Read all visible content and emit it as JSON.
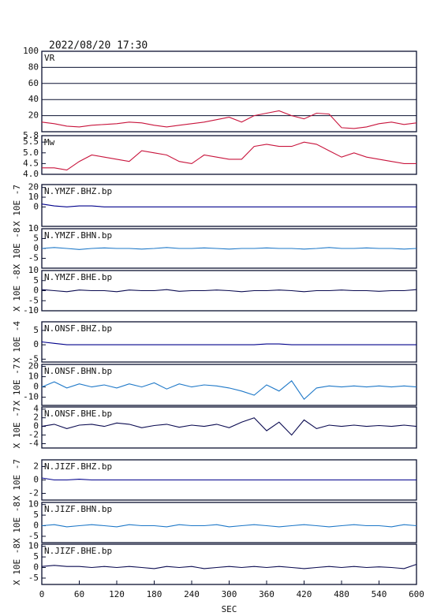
{
  "chart_data": [
    {
      "type": "line",
      "title": "2022/08/20 17:30",
      "label": "VR",
      "color": "#c8143c",
      "x": [
        0,
        20,
        40,
        60,
        80,
        100,
        120,
        140,
        160,
        180,
        200,
        220,
        240,
        260,
        280,
        300,
        320,
        340,
        360,
        380,
        400,
        420,
        440,
        460,
        480,
        500,
        520,
        540,
        560,
        580,
        600
      ],
      "values": [
        12,
        10,
        7,
        6,
        8,
        9,
        10,
        12,
        11,
        8,
        6,
        8,
        10,
        12,
        15,
        18,
        12,
        20,
        23,
        26,
        20,
        16,
        23,
        22,
        5,
        4,
        6,
        10,
        12,
        9,
        11
      ],
      "xlim": [
        0,
        600
      ],
      "ylim": [
        0,
        100
      ],
      "yticks": [
        20,
        40,
        60,
        80,
        100
      ],
      "grid": true
    },
    {
      "type": "line",
      "label": "Mw",
      "color": "#c8143c",
      "x": [
        0,
        20,
        40,
        60,
        80,
        100,
        120,
        140,
        160,
        180,
        200,
        220,
        240,
        260,
        280,
        300,
        320,
        340,
        360,
        380,
        400,
        420,
        440,
        460,
        480,
        500,
        520,
        540,
        560,
        580,
        600
      ],
      "values": [
        4.3,
        4.3,
        4.2,
        4.6,
        4.9,
        4.8,
        4.7,
        4.6,
        5.1,
        5.0,
        4.9,
        4.6,
        4.5,
        4.9,
        4.8,
        4.7,
        4.7,
        5.3,
        5.4,
        5.3,
        5.3,
        5.5,
        5.4,
        5.1,
        4.8,
        5.0,
        4.8,
        4.7,
        4.6,
        4.5,
        4.5
      ],
      "xlim": [
        0,
        600
      ],
      "ylim": [
        4.0,
        5.8
      ],
      "yticks": [
        {
          "value": 4,
          "label": "4.0"
        },
        4.5,
        {
          "value": 5,
          "label": "5.0"
        },
        5.5,
        5.8
      ],
      "grid": false
    },
    {
      "type": "line",
      "label": "N.YMZF.BHZ.bp",
      "axis_label": "X 10E -7",
      "color": "#00008b",
      "x": [
        0,
        20,
        40,
        60,
        80,
        100,
        120,
        140,
        160,
        180,
        200,
        220,
        240,
        260,
        280,
        300,
        320,
        340,
        360,
        380,
        400,
        420,
        440,
        460,
        480,
        500,
        520,
        540,
        560,
        580,
        600
      ],
      "values": [
        3,
        1,
        0,
        1,
        1,
        0,
        0,
        0,
        0,
        0,
        0,
        0,
        0,
        0,
        0,
        0,
        0,
        0,
        0,
        0,
        0,
        0,
        0,
        0,
        0,
        0,
        0,
        0,
        0,
        0,
        0
      ],
      "xlim": [
        0,
        600
      ],
      "ylim": [
        -20,
        23
      ],
      "yticks": [
        0,
        10,
        20
      ],
      "grid": false
    },
    {
      "type": "line",
      "label": "N.YMZF.BHN.bp",
      "axis_label": "X 10E -8",
      "color": "#1e78c8",
      "x": [
        0,
        20,
        40,
        60,
        80,
        100,
        120,
        140,
        160,
        180,
        200,
        220,
        240,
        260,
        280,
        300,
        320,
        340,
        360,
        380,
        400,
        420,
        440,
        460,
        480,
        500,
        520,
        540,
        560,
        580,
        600
      ],
      "values": [
        0,
        0.5,
        0,
        -0.5,
        0,
        0.3,
        0,
        0,
        -0.3,
        0,
        0.5,
        0,
        0,
        0.3,
        0,
        -0.3,
        0,
        0,
        0.3,
        0,
        0,
        -0.3,
        0,
        0.5,
        0,
        0,
        0.3,
        0,
        0,
        -0.3,
        0
      ],
      "xlim": [
        0,
        600
      ],
      "ylim": [
        -10,
        10
      ],
      "yticks": [
        -5,
        0,
        5,
        10
      ],
      "grid": false
    },
    {
      "type": "line",
      "label": "N.YMZF.BHE.bp",
      "axis_label": "X 10E -8",
      "color": "#0a0a50",
      "x": [
        0,
        20,
        40,
        60,
        80,
        100,
        120,
        140,
        160,
        180,
        200,
        220,
        240,
        260,
        280,
        300,
        320,
        340,
        360,
        380,
        400,
        420,
        440,
        460,
        480,
        500,
        520,
        540,
        560,
        580,
        600
      ],
      "values": [
        0.5,
        0,
        -0.5,
        0.3,
        0,
        0,
        -0.5,
        0.3,
        0,
        0,
        0.5,
        -0.3,
        0,
        0,
        0.3,
        0,
        -0.5,
        0,
        0,
        0.3,
        0,
        -0.5,
        0,
        0,
        0.3,
        0,
        0,
        -0.3,
        0,
        0,
        0.5
      ],
      "xlim": [
        0,
        600
      ],
      "ylim": [
        -10,
        10
      ],
      "yticks": [
        -10,
        -5,
        0,
        5,
        10
      ],
      "grid": false
    },
    {
      "type": "line",
      "label": "N.ONSF.BHZ.bp",
      "axis_label": "X 10E -4",
      "color": "#00008b",
      "x": [
        0,
        20,
        40,
        60,
        80,
        100,
        120,
        140,
        160,
        180,
        200,
        220,
        240,
        260,
        280,
        300,
        320,
        340,
        360,
        380,
        400,
        420,
        440,
        460,
        480,
        500,
        520,
        540,
        560,
        580,
        600
      ],
      "values": [
        1,
        0.5,
        0,
        0,
        0,
        0,
        0,
        0,
        0,
        0,
        0,
        0,
        0,
        0,
        0,
        0,
        0,
        0,
        0.3,
        0.3,
        0,
        0,
        0,
        0,
        0,
        0,
        0,
        0,
        0,
        0,
        0
      ],
      "xlim": [
        0,
        600
      ],
      "ylim": [
        -6,
        8
      ],
      "yticks": [
        -5,
        0,
        5
      ],
      "grid": false
    },
    {
      "type": "line",
      "label": "N.ONSF.BHN.bp",
      "axis_label": "X 10E -7",
      "color": "#1e78c8",
      "x": [
        0,
        20,
        40,
        60,
        80,
        100,
        120,
        140,
        160,
        180,
        200,
        220,
        240,
        260,
        280,
        300,
        320,
        340,
        360,
        380,
        400,
        420,
        440,
        460,
        480,
        500,
        520,
        540,
        560,
        580,
        600
      ],
      "values": [
        0,
        5,
        -1,
        3,
        0,
        2,
        -1,
        3,
        0,
        4,
        -2,
        3,
        0,
        2,
        1,
        -1,
        -4,
        -8,
        2,
        -4,
        6,
        -12,
        -1,
        1,
        0,
        1,
        0,
        1,
        0,
        1,
        0
      ],
      "xlim": [
        0,
        600
      ],
      "ylim": [
        -18,
        22
      ],
      "yticks": [
        -10,
        0,
        10,
        20
      ],
      "grid": false
    },
    {
      "type": "line",
      "label": "N.ONSF.BHE.bp",
      "axis_label": "X 10E -7",
      "color": "#0a0a50",
      "x": [
        0,
        20,
        40,
        60,
        80,
        100,
        120,
        140,
        160,
        180,
        200,
        220,
        240,
        260,
        280,
        300,
        320,
        340,
        360,
        380,
        400,
        420,
        440,
        460,
        480,
        500,
        520,
        540,
        560,
        580,
        600
      ],
      "values": [
        0,
        0.5,
        -0.5,
        0.3,
        0.5,
        0,
        0.8,
        0.5,
        -0.3,
        0.2,
        0.5,
        -0.2,
        0.3,
        0,
        0.5,
        -0.3,
        1,
        2,
        -1,
        1,
        -2,
        1.5,
        -0.5,
        0.3,
        0,
        0.3,
        0,
        0.2,
        0,
        0.3,
        0
      ],
      "xlim": [
        0,
        600
      ],
      "ylim": [
        -5,
        4.5
      ],
      "yticks": [
        -4,
        -2,
        0,
        2,
        4
      ],
      "grid": false
    },
    {
      "type": "line",
      "label": "N.JIZF.BHZ.bp",
      "axis_label": "X 10E -7",
      "color": "#00008b",
      "x": [
        0,
        20,
        40,
        60,
        80,
        100,
        120,
        140,
        160,
        180,
        200,
        220,
        240,
        260,
        280,
        300,
        320,
        340,
        360,
        380,
        400,
        420,
        440,
        460,
        480,
        500,
        520,
        540,
        560,
        580,
        600
      ],
      "values": [
        0.3,
        0,
        0,
        0.1,
        0,
        0,
        0,
        0,
        0,
        0,
        0,
        0,
        0,
        0,
        0,
        0,
        0,
        0,
        0,
        0,
        0,
        0,
        0,
        0,
        0,
        0,
        0,
        0,
        0,
        0,
        0
      ],
      "xlim": [
        0,
        600
      ],
      "ylim": [
        -3,
        3
      ],
      "yticks": [
        -2,
        0,
        2
      ],
      "grid": false
    },
    {
      "type": "line",
      "label": "N.JIZF.BHN.bp",
      "axis_label": "X 10E -8",
      "color": "#1e78c8",
      "x": [
        0,
        20,
        40,
        60,
        80,
        100,
        120,
        140,
        160,
        180,
        200,
        220,
        240,
        260,
        280,
        300,
        320,
        340,
        360,
        380,
        400,
        420,
        440,
        460,
        480,
        500,
        520,
        540,
        560,
        580,
        600
      ],
      "values": [
        0,
        0.5,
        -0.5,
        0,
        0.5,
        0,
        -0.5,
        0.5,
        0,
        0,
        -0.5,
        0.5,
        0,
        0,
        0.5,
        -0.5,
        0,
        0.5,
        0,
        -0.5,
        0,
        0.5,
        0,
        -0.5,
        0,
        0.5,
        0,
        0,
        -0.5,
        0.5,
        0
      ],
      "xlim": [
        0,
        600
      ],
      "ylim": [
        -8,
        11
      ],
      "yticks": [
        -5,
        0,
        5,
        10
      ],
      "grid": false
    },
    {
      "type": "line",
      "label": "N.JIZF.BHE.bp",
      "axis_label": "X 10E -8",
      "color": "#0a0a50",
      "x": [
        0,
        20,
        40,
        60,
        80,
        100,
        120,
        140,
        160,
        180,
        200,
        220,
        240,
        260,
        280,
        300,
        320,
        340,
        360,
        380,
        400,
        420,
        440,
        460,
        480,
        500,
        520,
        540,
        560,
        580,
        600
      ],
      "values": [
        0.5,
        1,
        0.5,
        0.5,
        0,
        0.5,
        0,
        0.5,
        0,
        -0.5,
        0.5,
        0,
        0.5,
        -0.5,
        0,
        0.5,
        0,
        0.5,
        0,
        0.5,
        0,
        -0.5,
        0,
        0.5,
        0,
        0.5,
        0,
        0.3,
        0,
        -0.5,
        1.5
      ],
      "xlim": [
        0,
        600
      ],
      "ylim": [
        -8,
        11
      ],
      "yticks": [
        -5,
        0,
        5,
        10
      ],
      "grid": false,
      "xticks": [
        0,
        60,
        120,
        180,
        240,
        300,
        360,
        420,
        480,
        540,
        600
      ],
      "xlabel": "SEC"
    }
  ]
}
